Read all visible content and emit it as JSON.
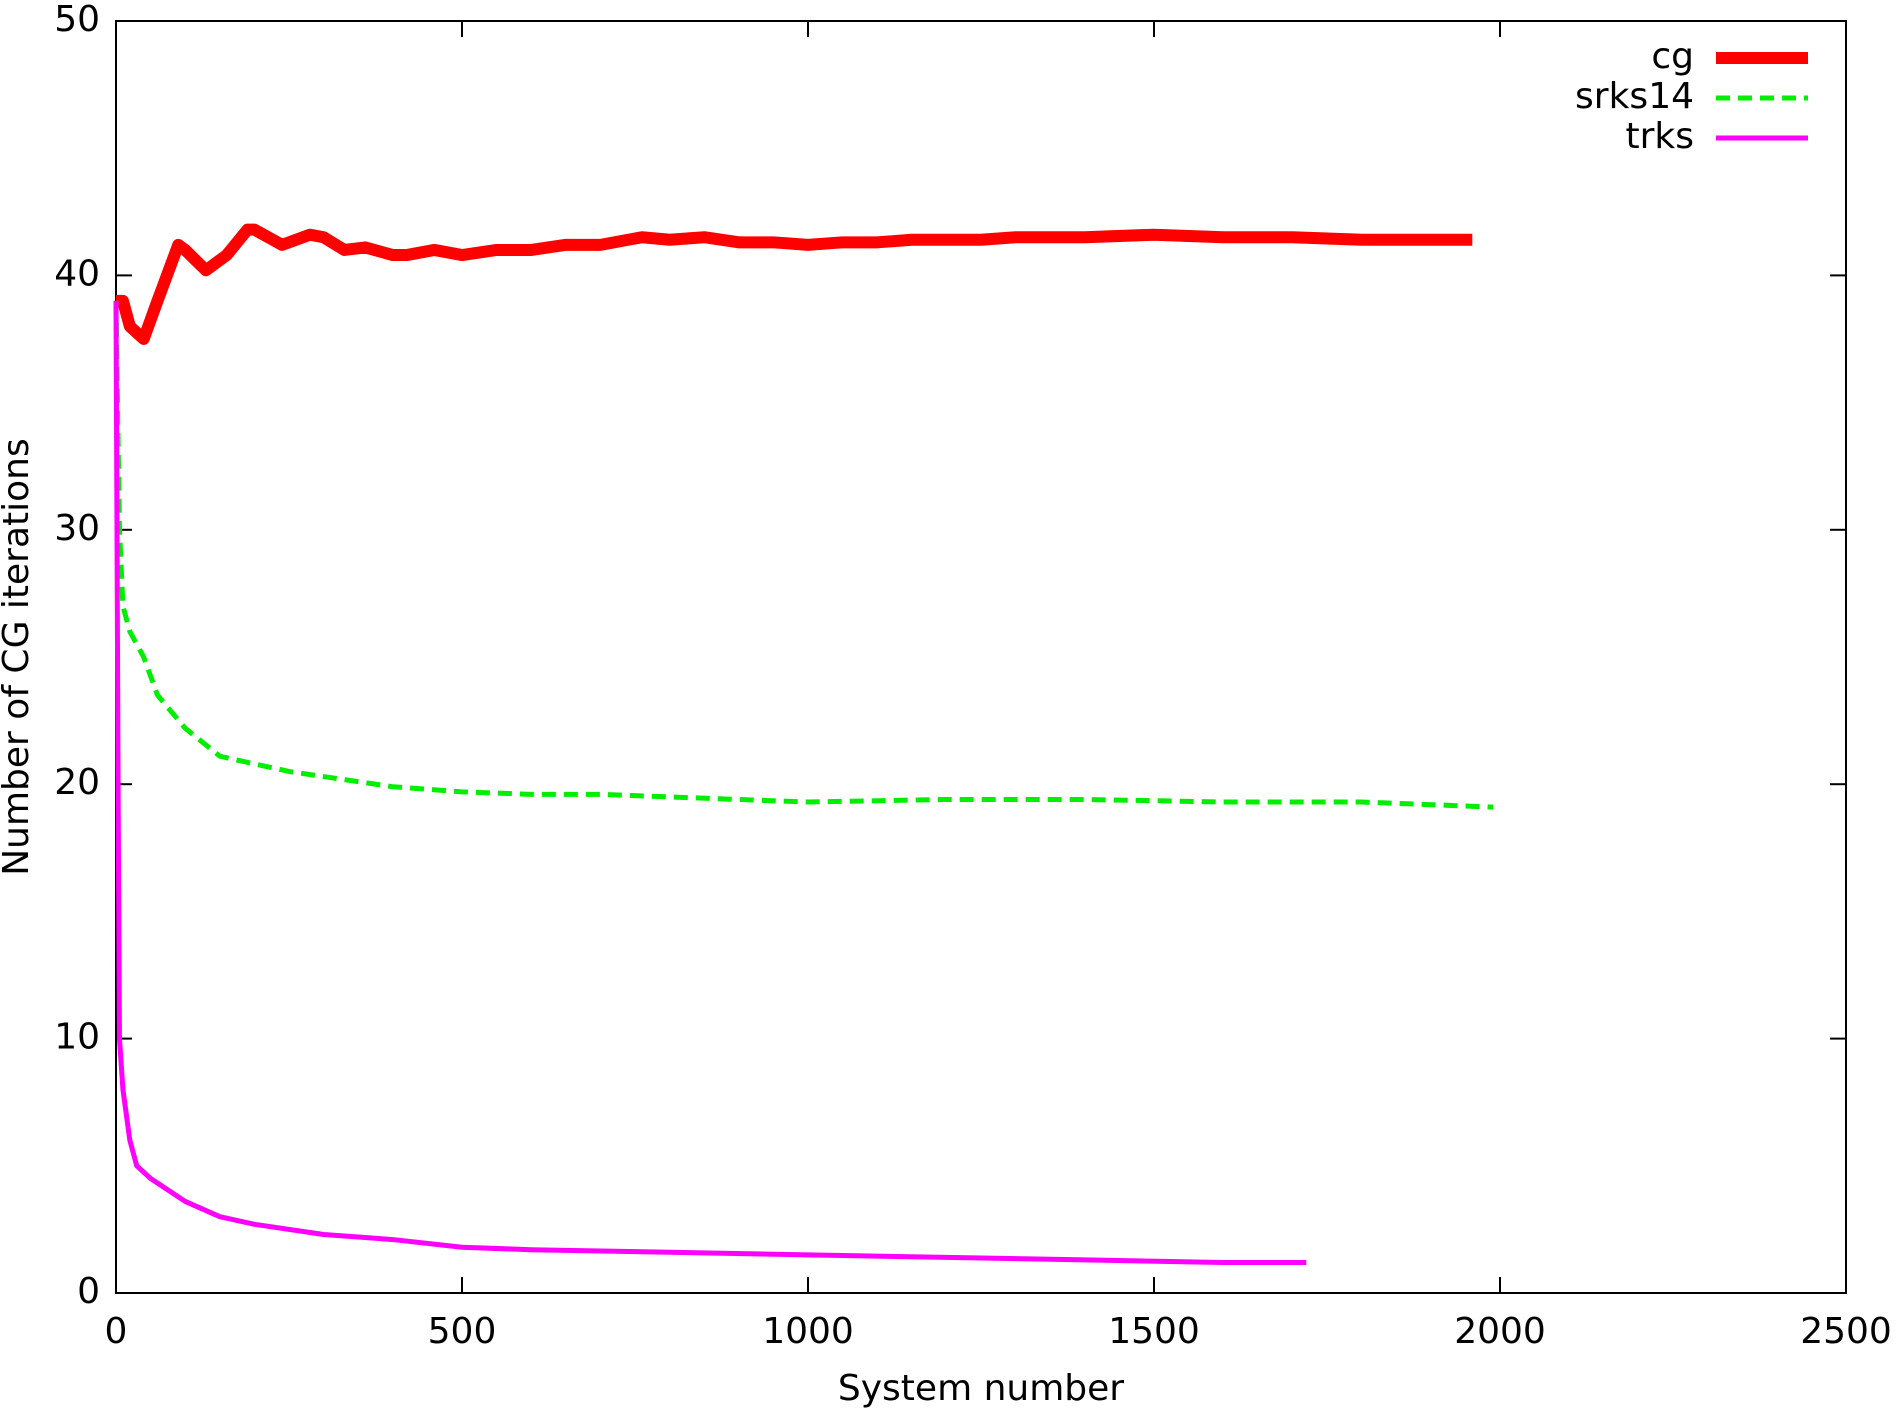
{
  "chart_data": {
    "type": "line",
    "xlabel": "System number",
    "ylabel": "Number of CG iterations",
    "xlim": [
      0,
      2500
    ],
    "xticks": [
      0,
      500,
      1000,
      1500,
      2000,
      2500
    ],
    "ylim": [
      0,
      50
    ],
    "yticks": [
      0,
      10,
      20,
      30,
      40,
      50
    ],
    "legend": "upper right",
    "series": [
      {
        "name": "cg",
        "color": "#ff0000",
        "dash": "solid",
        "width": 12,
        "x": [
          0,
          10,
          20,
          40,
          60,
          90,
          100,
          130,
          160,
          190,
          200,
          240,
          280,
          300,
          330,
          360,
          400,
          420,
          460,
          500,
          550,
          600,
          650,
          700,
          760,
          800,
          850,
          900,
          950,
          1000,
          1050,
          1100,
          1150,
          1200,
          1250,
          1300,
          1400,
          1500,
          1600,
          1700,
          1800,
          1900,
          1960
        ],
        "values": [
          39,
          39,
          38,
          37.5,
          39,
          41.2,
          41,
          40.2,
          40.8,
          41.8,
          41.8,
          41.2,
          41.6,
          41.5,
          41,
          41.1,
          40.8,
          40.8,
          41,
          40.8,
          41,
          41,
          41.2,
          41.2,
          41.5,
          41.4,
          41.5,
          41.3,
          41.3,
          41.2,
          41.3,
          41.3,
          41.4,
          41.4,
          41.4,
          41.5,
          41.5,
          41.6,
          41.5,
          41.5,
          41.4,
          41.4,
          41.4
        ]
      },
      {
        "name": "srks14",
        "color": "#00ee00",
        "dash": "dashed",
        "width": 5,
        "x": [
          0,
          5,
          10,
          20,
          40,
          60,
          100,
          150,
          200,
          250,
          300,
          400,
          500,
          600,
          700,
          800,
          1000,
          1200,
          1400,
          1600,
          1800,
          1990
        ],
        "values": [
          39,
          30,
          27,
          26,
          25,
          23.5,
          22.2,
          21.1,
          20.8,
          20.5,
          20.3,
          19.9,
          19.7,
          19.6,
          19.6,
          19.5,
          19.3,
          19.4,
          19.4,
          19.3,
          19.3,
          19.1
        ]
      },
      {
        "name": "trks",
        "color": "#ff00ff",
        "dash": "solid",
        "width": 5,
        "x": [
          0,
          3,
          5,
          10,
          20,
          30,
          50,
          100,
          150,
          200,
          300,
          400,
          500,
          600,
          800,
          1000,
          1200,
          1400,
          1600,
          1720
        ],
        "values": [
          39,
          20,
          10,
          8,
          6,
          5,
          4.5,
          3.6,
          3,
          2.7,
          2.3,
          2.1,
          1.8,
          1.7,
          1.6,
          1.5,
          1.4,
          1.3,
          1.2,
          1.2
        ]
      }
    ]
  }
}
